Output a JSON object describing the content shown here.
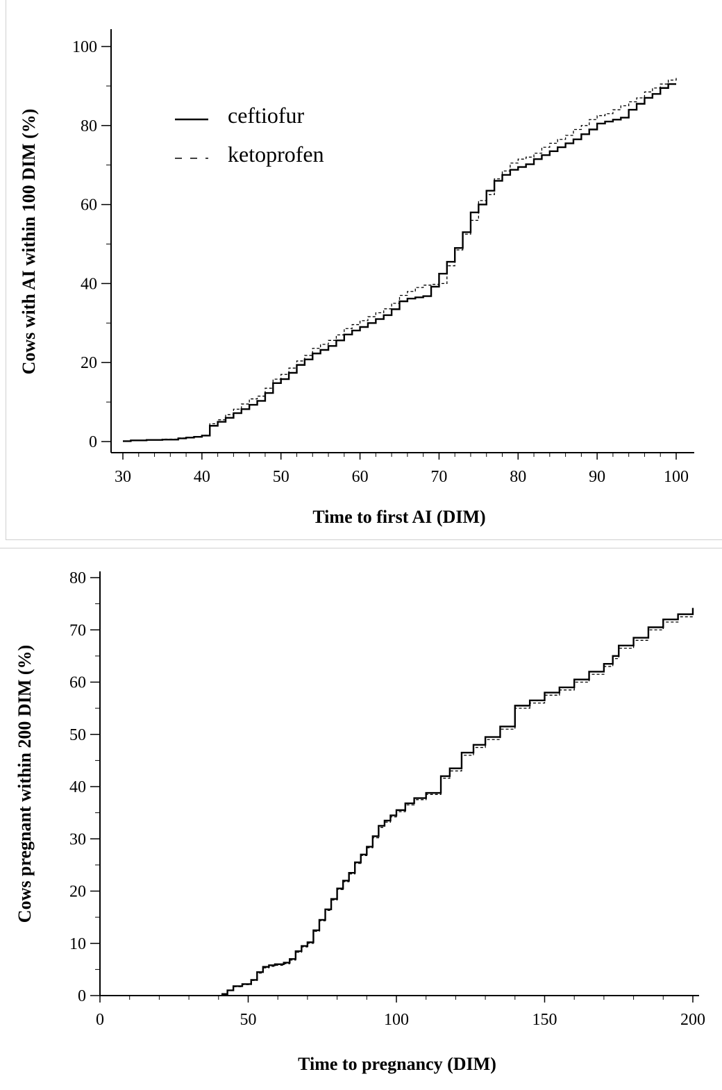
{
  "chart_data": [
    {
      "type": "line",
      "step": true,
      "xlabel": "Time to first AI (DIM)",
      "ylabel": "Cows with AI within 100 DIM (%)",
      "xlim": [
        30,
        100
      ],
      "ylim": [
        0,
        100
      ],
      "xticks": [
        "30",
        "40",
        "50",
        "60",
        "70",
        "80",
        "90",
        "100"
      ],
      "yticks": [
        "0",
        "20",
        "40",
        "60",
        "80",
        "100"
      ],
      "legend": "top-left",
      "series": [
        {
          "name": "ceftiofur",
          "style": "solid",
          "x": [
            30,
            31,
            33,
            35,
            37,
            38,
            39,
            40,
            41,
            42,
            43,
            44,
            45,
            46,
            47,
            48,
            49,
            50,
            51,
            52,
            53,
            54,
            55,
            56,
            57,
            58,
            59,
            60,
            61,
            62,
            63,
            64,
            65,
            66,
            67,
            68,
            69,
            70,
            71,
            72,
            73,
            74,
            75,
            76,
            77,
            78,
            79,
            80,
            81,
            82,
            83,
            84,
            85,
            86,
            87,
            88,
            89,
            90,
            91,
            92,
            93,
            94,
            95,
            96,
            97,
            98,
            99,
            100
          ],
          "y": [
            0.1,
            0.3,
            0.4,
            0.5,
            0.8,
            1.0,
            1.2,
            1.5,
            4.0,
            5.0,
            6.0,
            7.2,
            8.2,
            9.3,
            10.3,
            12.3,
            14.8,
            15.8,
            17.4,
            19.4,
            20.8,
            22.3,
            23.2,
            24.2,
            25.6,
            27.1,
            28.1,
            29.0,
            30.0,
            31.0,
            32.0,
            33.5,
            35.5,
            36.2,
            36.5,
            36.8,
            39.2,
            42.5,
            45.5,
            49.0,
            53.0,
            58.0,
            60.0,
            63.5,
            66.0,
            67.5,
            68.8,
            69.5,
            70.2,
            71.5,
            72.5,
            73.5,
            74.5,
            75.5,
            76.5,
            77.8,
            79.0,
            80.5,
            81.0,
            81.5,
            82.0,
            84.0,
            85.5,
            87.0,
            88.0,
            89.5,
            90.5,
            90.5
          ]
        },
        {
          "name": "ketoprofen",
          "style": "dashed",
          "x": [
            30,
            31,
            33,
            35,
            37,
            38,
            39,
            40,
            41,
            42,
            43,
            44,
            45,
            46,
            47,
            48,
            49,
            50,
            51,
            52,
            53,
            54,
            55,
            56,
            57,
            58,
            59,
            60,
            61,
            62,
            63,
            64,
            65,
            66,
            67,
            68,
            69,
            70,
            71,
            72,
            73,
            74,
            75,
            76,
            77,
            78,
            79,
            80,
            81,
            82,
            83,
            84,
            85,
            86,
            87,
            88,
            89,
            90,
            91,
            92,
            93,
            94,
            95,
            96,
            97,
            98,
            99,
            100
          ],
          "y": [
            0.1,
            0.3,
            0.4,
            0.6,
            0.9,
            1.1,
            1.3,
            1.6,
            4.5,
            5.5,
            6.8,
            8.2,
            9.5,
            10.8,
            11.5,
            13.5,
            15.8,
            17.0,
            18.6,
            20.4,
            21.8,
            23.6,
            24.6,
            25.6,
            27.0,
            28.6,
            29.6,
            30.6,
            31.6,
            32.6,
            33.6,
            35.0,
            37.0,
            38.0,
            39.0,
            39.6,
            39.8,
            40.0,
            44.5,
            48.5,
            52.5,
            56.0,
            61.0,
            62.5,
            66.5,
            68.5,
            70.5,
            71.5,
            72.0,
            73.0,
            74.5,
            75.5,
            76.5,
            77.5,
            79.0,
            80.0,
            81.5,
            82.5,
            83.0,
            84.0,
            85.0,
            86.0,
            87.0,
            88.5,
            89.5,
            90.5,
            91.5,
            92.5
          ]
        }
      ]
    },
    {
      "type": "line",
      "step": true,
      "xlabel": "Time to pregnancy (DIM)",
      "ylabel": "Cows pregnant within 200 DIM (%)",
      "xlim": [
        0,
        200
      ],
      "ylim": [
        0,
        80
      ],
      "xticks": [
        "0",
        "50",
        "100",
        "150",
        "200"
      ],
      "yticks": [
        "0",
        "10",
        "20",
        "30",
        "40",
        "50",
        "60",
        "70",
        "80"
      ],
      "series": [
        {
          "name": "ceftiofur",
          "style": "solid",
          "x": [
            41,
            43,
            45,
            48,
            51,
            53,
            55,
            57,
            59,
            62,
            64,
            66,
            68,
            70,
            72,
            74,
            76,
            78,
            80,
            82,
            84,
            86,
            88,
            90,
            92,
            94,
            96,
            98,
            100,
            103,
            106,
            110,
            115,
            118,
            122,
            126,
            130,
            135,
            140,
            145,
            150,
            155,
            160,
            165,
            170,
            173,
            175,
            180,
            185,
            190,
            195,
            200
          ],
          "y": [
            0.3,
            1.0,
            1.8,
            2.2,
            3.0,
            4.5,
            5.5,
            5.8,
            6.0,
            6.3,
            7.0,
            8.5,
            9.5,
            10.2,
            12.5,
            14.5,
            16.5,
            18.5,
            20.5,
            22.0,
            23.5,
            25.5,
            27.0,
            28.5,
            30.5,
            32.5,
            33.5,
            34.5,
            35.5,
            36.8,
            37.8,
            38.8,
            42.0,
            43.5,
            46.5,
            48.0,
            49.5,
            51.5,
            55.5,
            56.5,
            58.0,
            59.0,
            60.5,
            62.0,
            63.5,
            65.0,
            67.0,
            68.5,
            70.5,
            72.0,
            73.0,
            74.2
          ]
        },
        {
          "name": "ketoprofen",
          "style": "dashed",
          "x": [
            41,
            43,
            45,
            48,
            51,
            53,
            55,
            57,
            59,
            62,
            64,
            66,
            68,
            70,
            72,
            74,
            76,
            78,
            80,
            82,
            84,
            86,
            88,
            90,
            92,
            94,
            96,
            98,
            100,
            103,
            106,
            110,
            115,
            118,
            122,
            126,
            130,
            135,
            140,
            145,
            150,
            155,
            160,
            165,
            170,
            173,
            175,
            180,
            185,
            190,
            195,
            200
          ],
          "y": [
            0.3,
            1.0,
            1.7,
            2.1,
            2.9,
            4.3,
            5.3,
            5.6,
            5.8,
            6.1,
            6.8,
            8.3,
            9.3,
            10.0,
            12.3,
            14.3,
            16.3,
            18.3,
            20.3,
            21.8,
            23.3,
            25.3,
            26.8,
            28.3,
            30.2,
            32.2,
            33.2,
            34.2,
            35.2,
            36.5,
            37.5,
            38.5,
            41.6,
            43.0,
            46.0,
            47.5,
            49.0,
            51.0,
            55.0,
            56.0,
            57.5,
            58.5,
            60.0,
            61.5,
            63.0,
            64.5,
            66.5,
            68.0,
            70.0,
            71.5,
            72.5,
            73.6
          ]
        }
      ]
    }
  ]
}
